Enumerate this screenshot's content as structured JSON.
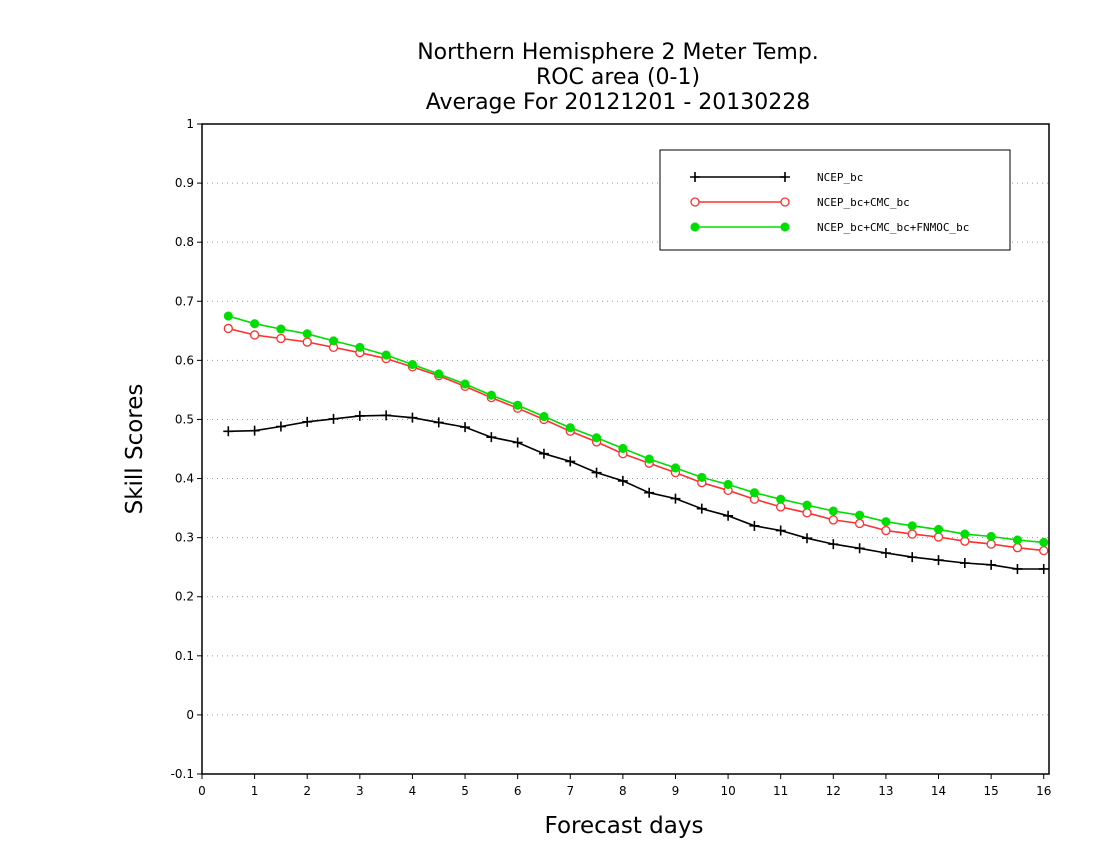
{
  "chart_data": {
    "type": "line",
    "title": [
      "Northern Hemisphere 2 Meter Temp.",
      "ROC area (0-1)",
      "Average For 20121201 - 20130228"
    ],
    "xlabel": "Forecast days",
    "ylabel": "Skill Scores",
    "xlim": [
      0,
      16.1
    ],
    "ylim": [
      -0.1,
      1
    ],
    "xticks": [
      0,
      1,
      2,
      3,
      4,
      5,
      6,
      7,
      8,
      9,
      10,
      11,
      12,
      13,
      14,
      15,
      16
    ],
    "xtick_labels": [
      "0",
      "1",
      "2",
      "3",
      "4",
      "5",
      "6",
      "7",
      "8",
      "9",
      "10",
      "11",
      "12",
      "13",
      "14",
      "15",
      "16"
    ],
    "yticks": [
      -0.1,
      0,
      0.1,
      0.2,
      0.3,
      0.4,
      0.5,
      0.6,
      0.7,
      0.8,
      0.9,
      1
    ],
    "ytick_labels": [
      "-0.1",
      "0",
      "0.1",
      "0.2",
      "0.3",
      "0.4",
      "0.5",
      "0.6",
      "0.7",
      "0.8",
      "0.9",
      "1"
    ],
    "grid": "horizontal-dotted",
    "legend_position": "top-right",
    "x": [
      0.5,
      1,
      1.5,
      2,
      2.5,
      3,
      3.5,
      4,
      4.5,
      5,
      5.5,
      6,
      6.5,
      7,
      7.5,
      8,
      8.5,
      9,
      9.5,
      10,
      10.5,
      11,
      11.5,
      12,
      12.5,
      13,
      13.5,
      14,
      14.5,
      15,
      15.5,
      16
    ],
    "series": [
      {
        "name": "NCEP_bc",
        "color": "#000000",
        "marker": "plus",
        "values": [
          0.48,
          0.481,
          0.488,
          0.496,
          0.501,
          0.506,
          0.507,
          0.503,
          0.495,
          0.487,
          0.47,
          0.461,
          0.442,
          0.429,
          0.41,
          0.396,
          0.376,
          0.366,
          0.349,
          0.337,
          0.32,
          0.312,
          0.299,
          0.289,
          0.282,
          0.274,
          0.267,
          0.262,
          0.257,
          0.254,
          0.247,
          0.247
        ]
      },
      {
        "name": "NCEP_bc+CMC_bc",
        "color": "#ff3030",
        "marker": "open-circle",
        "values": [
          0.654,
          0.643,
          0.637,
          0.631,
          0.622,
          0.613,
          0.603,
          0.589,
          0.574,
          0.556,
          0.537,
          0.519,
          0.5,
          0.48,
          0.462,
          0.442,
          0.426,
          0.41,
          0.393,
          0.38,
          0.365,
          0.352,
          0.342,
          0.33,
          0.324,
          0.312,
          0.306,
          0.301,
          0.294,
          0.289,
          0.283,
          0.278
        ]
      },
      {
        "name": "NCEP_bc+CMC_bc+FNMOC_bc",
        "color": "#00dd00",
        "marker": "filled-circle",
        "values": [
          0.675,
          0.662,
          0.653,
          0.645,
          0.633,
          0.622,
          0.609,
          0.593,
          0.577,
          0.56,
          0.541,
          0.524,
          0.505,
          0.486,
          0.469,
          0.451,
          0.433,
          0.418,
          0.402,
          0.39,
          0.376,
          0.365,
          0.355,
          0.345,
          0.338,
          0.327,
          0.32,
          0.314,
          0.306,
          0.302,
          0.296,
          0.292
        ]
      }
    ]
  }
}
